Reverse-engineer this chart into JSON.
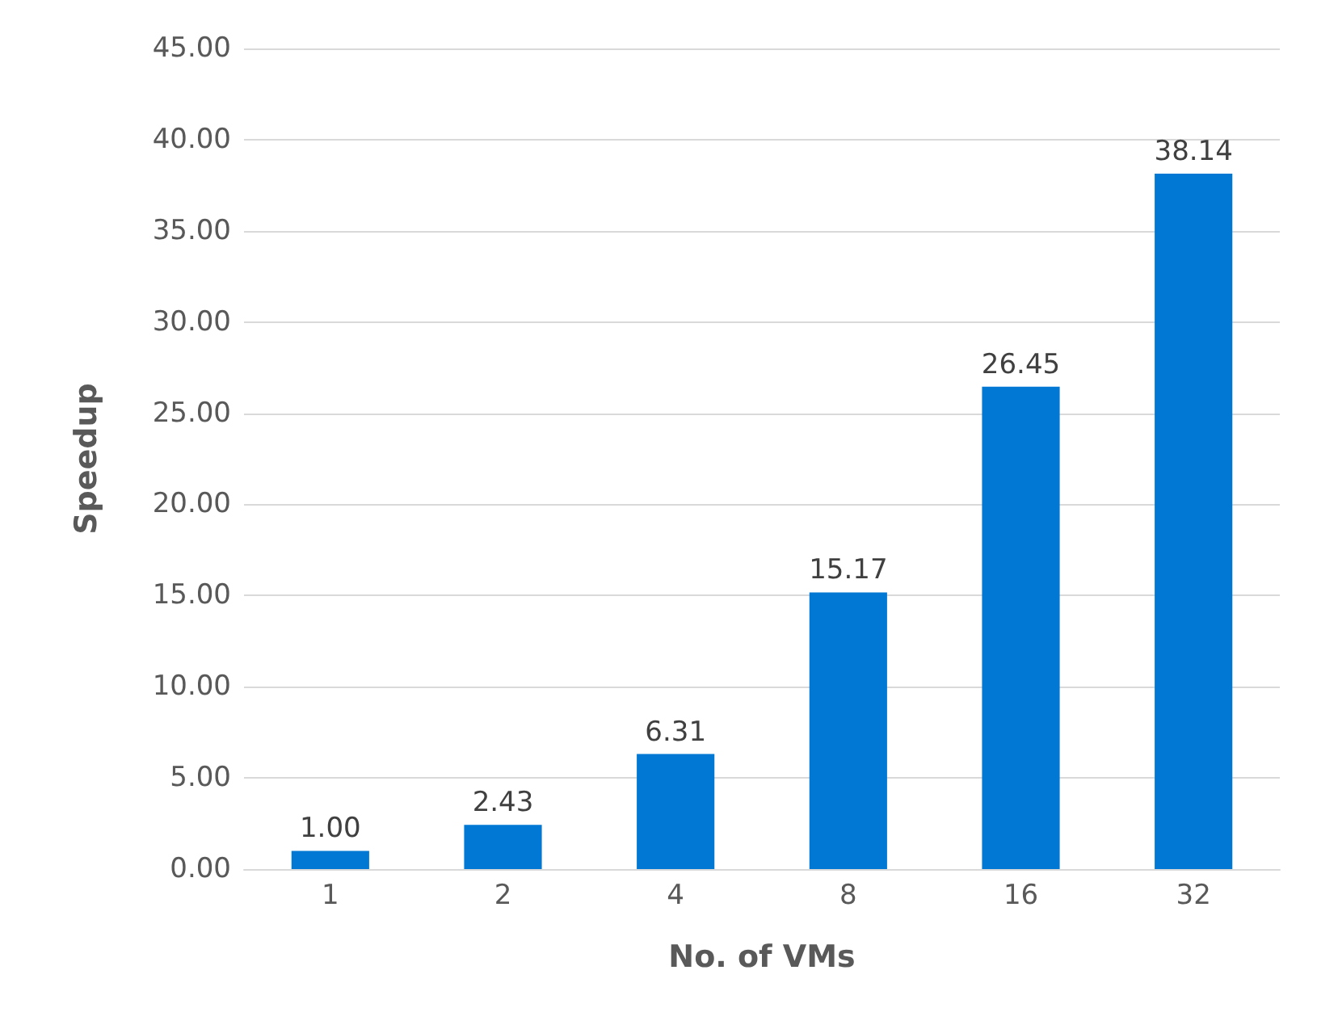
{
  "chart_data": {
    "type": "bar",
    "xlabel": "No. of VMs",
    "ylabel": "Speedup",
    "categories": [
      "1",
      "2",
      "4",
      "8",
      "16",
      "32"
    ],
    "values": [
      1.0,
      2.43,
      6.31,
      15.17,
      26.45,
      38.14
    ],
    "value_labels": [
      "1.00",
      "2.43",
      "6.31",
      "15.17",
      "26.45",
      "38.14"
    ],
    "color": "#0078d4",
    "ylim": [
      0,
      45
    ],
    "yticks": [
      {
        "value": 0,
        "label": "0.00"
      },
      {
        "value": 5,
        "label": "5.00"
      },
      {
        "value": 10,
        "label": "10.00"
      },
      {
        "value": 15,
        "label": "15.00"
      },
      {
        "value": 20,
        "label": "20.00"
      },
      {
        "value": 25,
        "label": "25.00"
      },
      {
        "value": 30,
        "label": "30.00"
      },
      {
        "value": 35,
        "label": "35.00"
      },
      {
        "value": 40,
        "label": "40.00"
      },
      {
        "value": 45,
        "label": "45.00"
      }
    ],
    "grid": "y"
  }
}
